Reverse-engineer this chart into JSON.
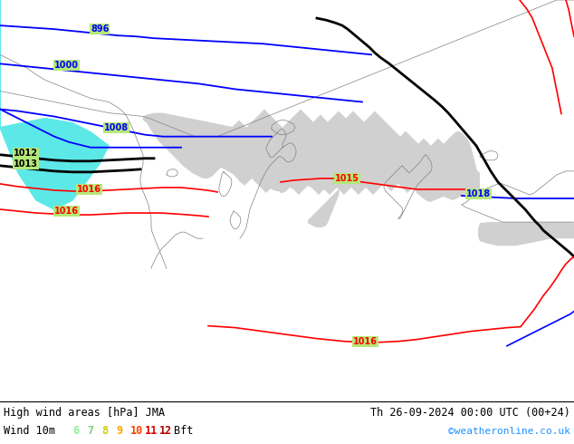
{
  "title_left": "High wind areas [hPa] JMA",
  "title_right": "Th 26-09-2024 00:00 UTC (00+24)",
  "subtitle_label": "Wind 10m",
  "bft_colors": [
    "#90ee90",
    "#7ccd7c",
    "#cdcd00",
    "#ffa500",
    "#ff6600",
    "#ff2200",
    "#cc0000"
  ],
  "bft_nums": [
    "6",
    "7",
    "8",
    "9",
    "10",
    "11",
    "12"
  ],
  "copyright": "©weatheronline.co.uk",
  "copyright_color": "#1e90ff",
  "land_color": "#b5e878",
  "sea_color": "#d0d0d0",
  "border_color": "#808080",
  "teal_color": "#40e0d0",
  "bottom_bg": "#ffffff",
  "text_color": "#000000",
  "blue_line_color": "#0000ff",
  "black_line_color": "#000000",
  "red_line_color": "#ff0000"
}
